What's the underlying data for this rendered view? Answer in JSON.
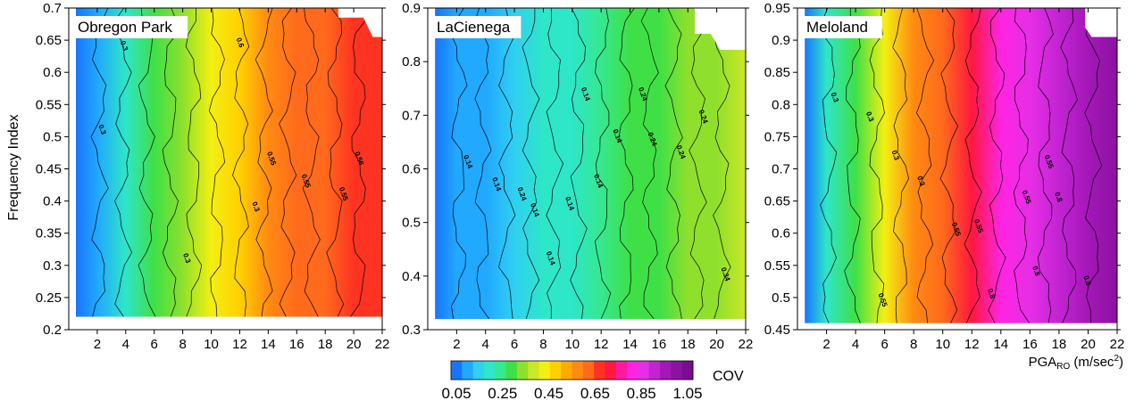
{
  "figure": {
    "ylabel": "Frequency Index",
    "xlabel_main": "PGA",
    "xlabel_sub": "RO",
    "xlabel_unit_pre": " (m/sec",
    "xlabel_unit_sup": "2",
    "xlabel_unit_post": ")"
  },
  "colorbar": {
    "label": "COV",
    "tick_labels": [
      "0.05",
      "0.25",
      "0.45",
      "0.65",
      "0.85",
      "1.05"
    ],
    "colors": [
      "#1874ff",
      "#21a8ff",
      "#30d0f0",
      "#2ee6c8",
      "#36e88e",
      "#3fe046",
      "#8fe02c",
      "#c9e826",
      "#f4ef12",
      "#ffd000",
      "#ffaa00",
      "#ff8a12",
      "#ff6a1c",
      "#ff3322",
      "#ff1840",
      "#ff1aa2",
      "#ff24e2",
      "#e62ee6",
      "#c224d2",
      "#a417b8",
      "#8c12a2",
      "#7a0c8f"
    ]
  },
  "chart_data": [
    {
      "type": "heatmap",
      "title": "Obregon Park",
      "xlim": [
        0,
        22
      ],
      "ylim": [
        0.2,
        0.7
      ],
      "xticks": [
        2,
        4,
        6,
        8,
        10,
        12,
        14,
        16,
        18,
        20,
        22
      ],
      "yticks": [
        0.2,
        0.25,
        0.3,
        0.35,
        0.4,
        0.45,
        0.5,
        0.55,
        0.6,
        0.65,
        0.7
      ],
      "ytick_labels": [
        "0.2",
        "0.25",
        "0.3",
        "0.35",
        "0.4",
        "0.45",
        "0.5",
        "0.55",
        "0.6",
        "0.65",
        "0.7"
      ],
      "data_extent": {
        "x": [
          0.5,
          22
        ],
        "y": [
          0.22,
          0.7
        ]
      },
      "cov_profile": {
        "x": [
          0.5,
          2,
          4,
          6,
          8,
          10,
          12,
          14,
          16,
          18,
          20,
          22
        ],
        "cov": [
          0.07,
          0.14,
          0.22,
          0.3,
          0.36,
          0.42,
          0.49,
          0.55,
          0.6,
          0.63,
          0.65,
          0.66
        ]
      },
      "contour_labels": [
        "0.3",
        "0.3",
        "0.3",
        "0.3",
        "0.6",
        "0.55",
        "0.55",
        "0.55",
        "0.56"
      ]
    },
    {
      "type": "heatmap",
      "title": "LaCienega",
      "xlim": [
        0,
        22
      ],
      "ylim": [
        0.3,
        0.9
      ],
      "xticks": [
        2,
        4,
        6,
        8,
        10,
        12,
        14,
        16,
        18,
        20,
        22
      ],
      "yticks": [
        0.3,
        0.4,
        0.5,
        0.6,
        0.7,
        0.8,
        0.9
      ],
      "ytick_labels": [
        "0.3",
        "0.4",
        "0.5",
        "0.6",
        "0.7",
        "0.8",
        "0.9"
      ],
      "data_extent": {
        "x": [
          0.5,
          22
        ],
        "y": [
          0.32,
          0.9
        ]
      },
      "cov_profile": {
        "x": [
          0.5,
          2,
          4,
          6,
          8,
          10,
          12,
          14,
          16,
          18,
          20,
          22
        ],
        "cov": [
          0.06,
          0.1,
          0.14,
          0.18,
          0.2,
          0.22,
          0.25,
          0.28,
          0.31,
          0.34,
          0.36,
          0.38
        ]
      },
      "contour_labels": [
        "0.14",
        "0.14",
        "0.14",
        "0.14",
        "0.14",
        "0.14",
        "0.14",
        "0.14",
        "0.24",
        "0.24",
        "0.24",
        "0.24",
        "0.24",
        "0.34"
      ]
    },
    {
      "type": "heatmap",
      "title": "Meloland",
      "xlim": [
        0,
        22
      ],
      "ylim": [
        0.45,
        0.95
      ],
      "xticks": [
        2,
        4,
        6,
        8,
        10,
        12,
        14,
        16,
        18,
        20,
        22
      ],
      "yticks": [
        0.45,
        0.5,
        0.55,
        0.6,
        0.65,
        0.7,
        0.75,
        0.8,
        0.85,
        0.9,
        0.95
      ],
      "ytick_labels": [
        "0.45",
        "0.5",
        "0.55",
        "0.6",
        "0.65",
        "0.7",
        "0.75",
        "0.8",
        "0.85",
        "0.9",
        "0.95"
      ],
      "data_extent": {
        "x": [
          0.5,
          22
        ],
        "y": [
          0.46,
          0.95
        ]
      },
      "cov_profile": {
        "x": [
          0.5,
          2,
          4,
          6,
          8,
          10,
          12,
          14,
          16,
          18,
          20,
          22
        ],
        "cov": [
          0.08,
          0.2,
          0.32,
          0.44,
          0.55,
          0.63,
          0.7,
          0.78,
          0.85,
          0.9,
          0.94,
          0.96
        ]
      },
      "contour_labels": [
        "0.3",
        "0.3",
        "0.3",
        "0.3",
        "0.55",
        "0.55",
        "0.55",
        "0.55",
        "0.55",
        "0.8",
        "0.8",
        "0.8",
        "0.8"
      ]
    }
  ]
}
